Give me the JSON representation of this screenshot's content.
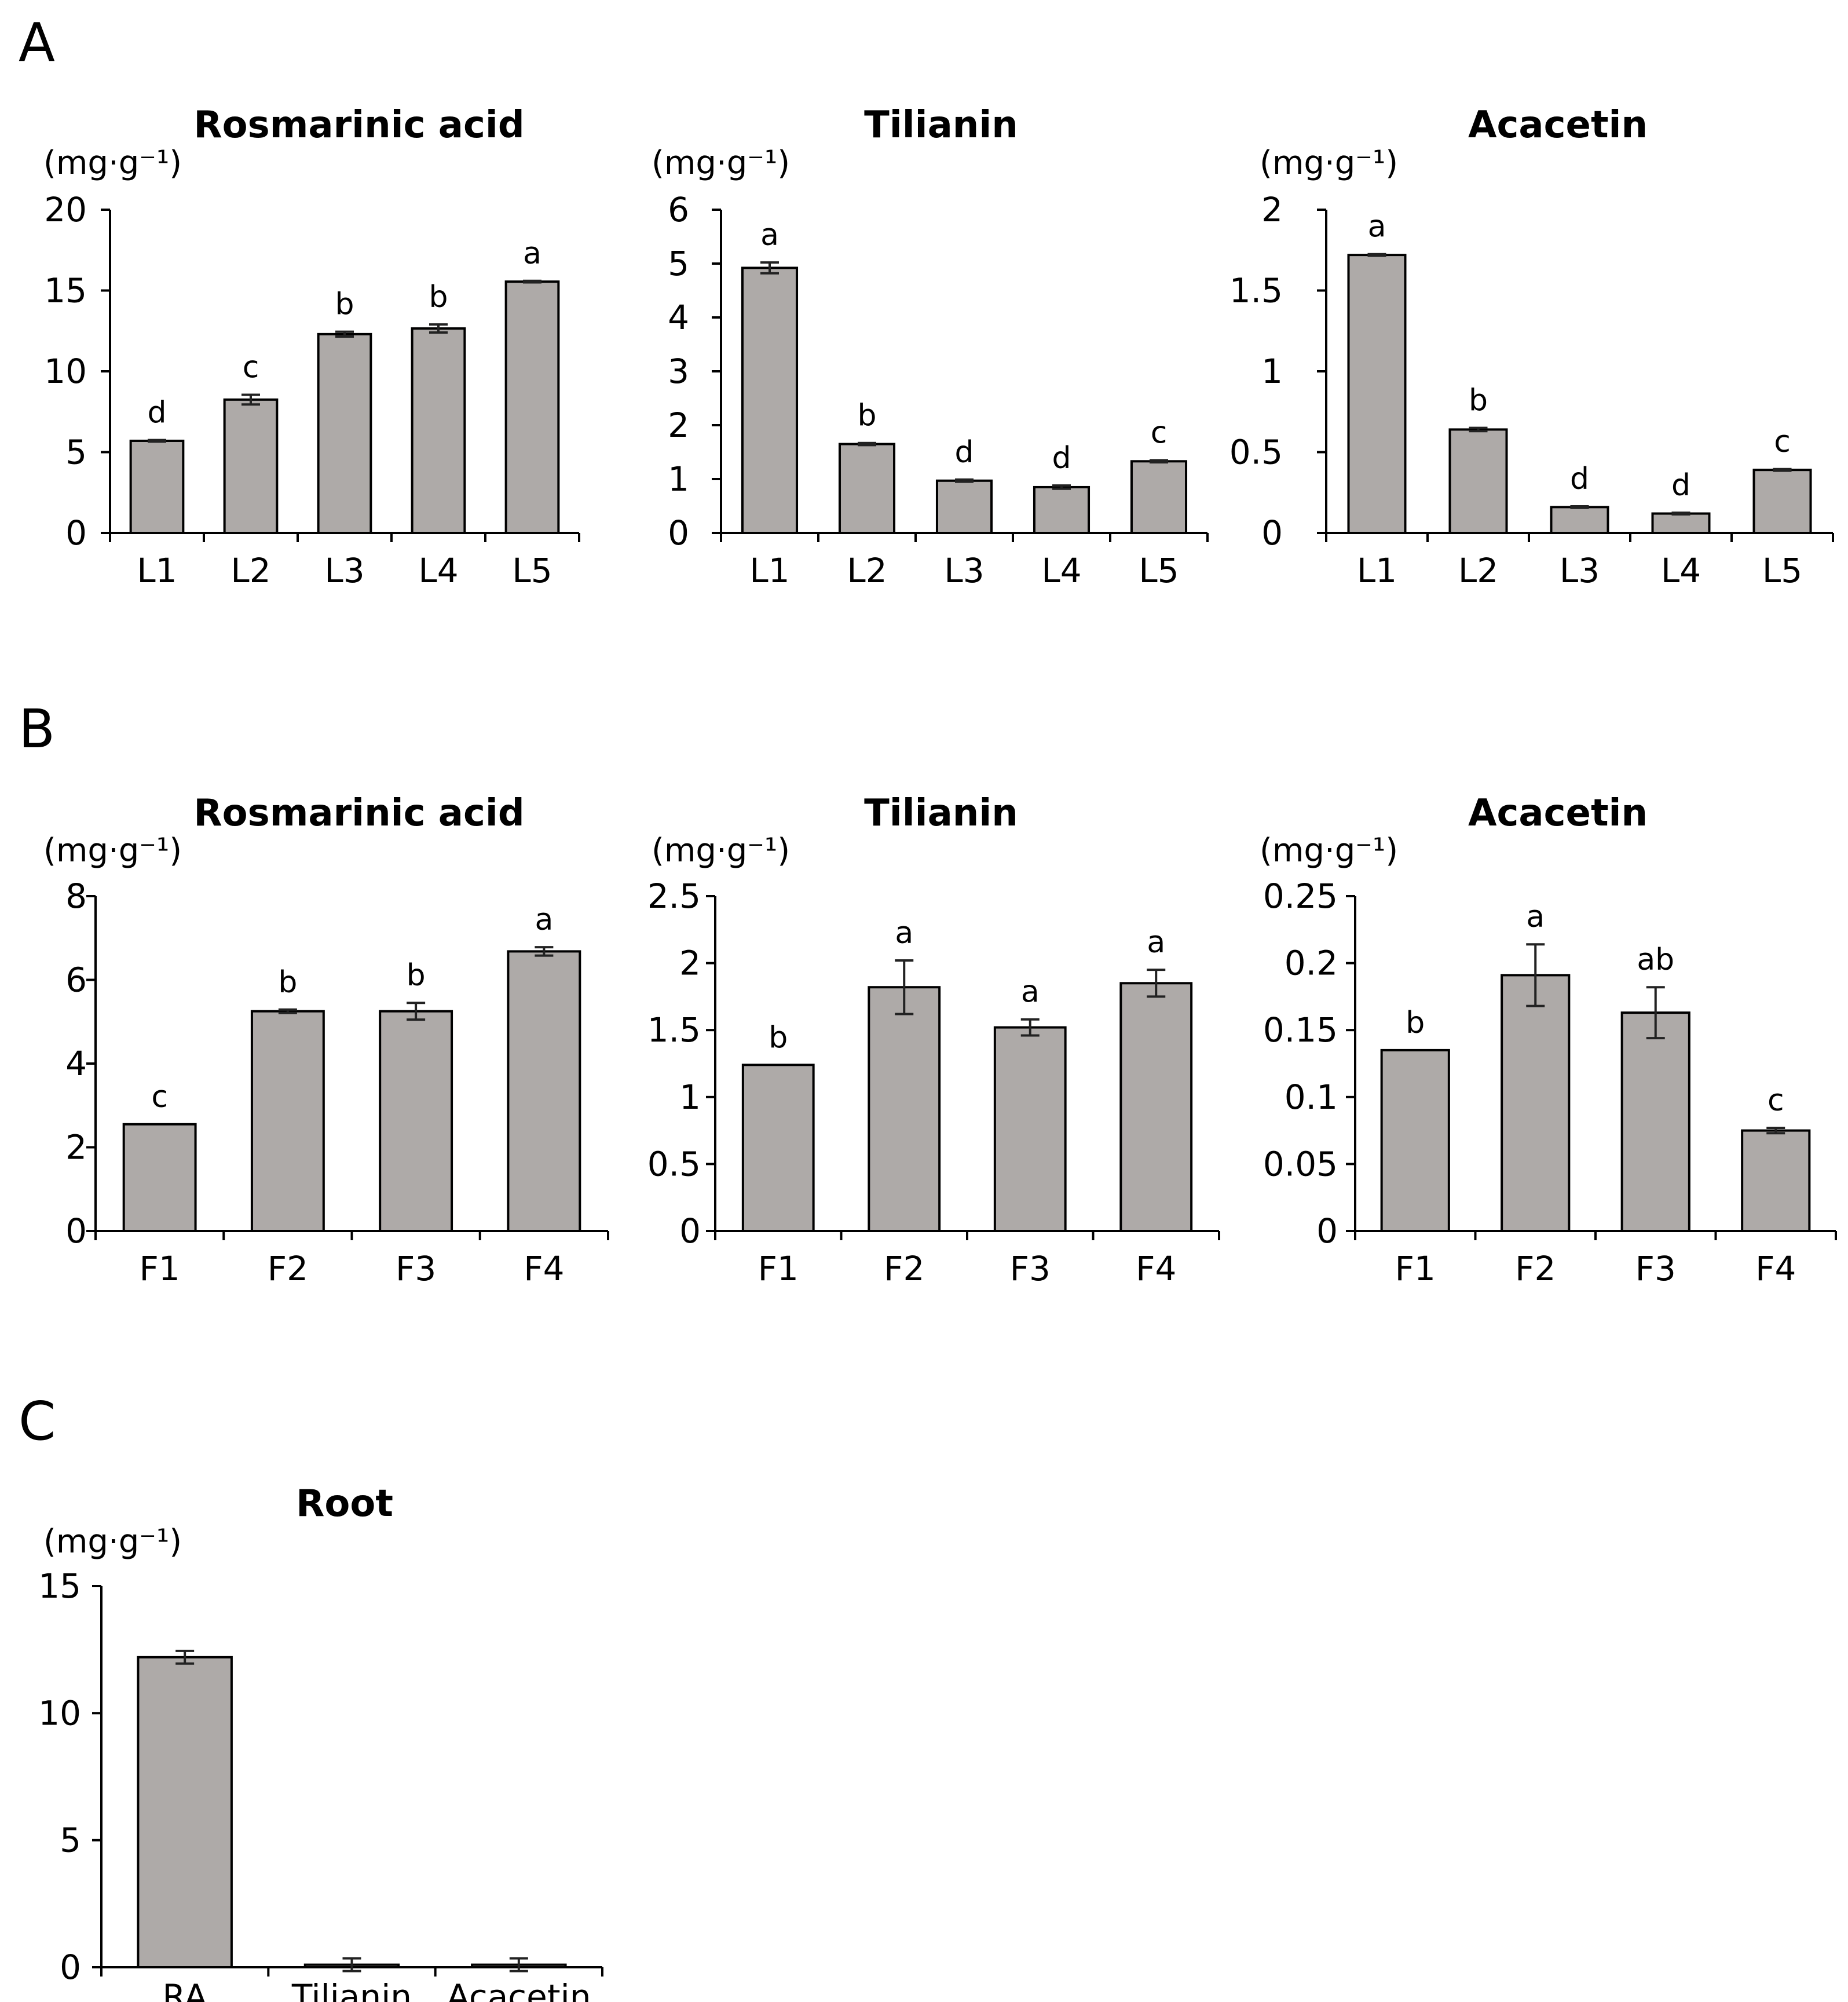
{
  "panels": [
    {
      "letter": "A"
    },
    {
      "letter": "B"
    },
    {
      "letter": "C"
    }
  ],
  "colors": {
    "bar_fill": "#aeaaa8",
    "bar_stroke": "#000000"
  },
  "chart_data": [
    {
      "panel": "A",
      "type": "bar",
      "title": "Rosmarinic acid",
      "ylabel": "(mg·g⁻¹)",
      "categories": [
        "L1",
        "L2",
        "L3",
        "L4",
        "L5"
      ],
      "values": [
        5.7,
        8.25,
        12.3,
        12.65,
        15.55
      ],
      "errors": [
        0.05,
        0.3,
        0.15,
        0.25,
        0.05
      ],
      "significance": [
        "d",
        "c",
        "b",
        "b",
        "a"
      ],
      "ylim": [
        0,
        20
      ],
      "yticks": [
        "0",
        "5",
        "10",
        "15",
        "20"
      ],
      "grid": false
    },
    {
      "panel": "A",
      "type": "bar",
      "title": "Tilianin",
      "ylabel": "(mg·g⁻¹)",
      "categories": [
        "L1",
        "L2",
        "L3",
        "L4",
        "L5"
      ],
      "values": [
        4.92,
        1.65,
        0.97,
        0.85,
        1.33
      ],
      "errors": [
        0.1,
        0.02,
        0.02,
        0.03,
        0.02
      ],
      "significance": [
        "a",
        "b",
        "d",
        "d",
        "c"
      ],
      "ylim": [
        0,
        6
      ],
      "yticks": [
        "0",
        "1",
        "2",
        "3",
        "4",
        "5",
        "6"
      ],
      "grid": false
    },
    {
      "panel": "A",
      "type": "bar",
      "title": "Acacetin",
      "ylabel": "(mg·g⁻¹)",
      "categories": [
        "L1",
        "L2",
        "L3",
        "L4",
        "L5"
      ],
      "values": [
        1.72,
        0.64,
        0.16,
        0.12,
        0.39
      ],
      "errors": [
        0.005,
        0.01,
        0.005,
        0.005,
        0.005
      ],
      "significance": [
        "a",
        "b",
        "d",
        "d",
        "c"
      ],
      "ylim": [
        0,
        2
      ],
      "yticks": [
        "0",
        "0.5",
        "1",
        "1.5",
        "2"
      ],
      "grid": false
    },
    {
      "panel": "B",
      "type": "bar",
      "title": "Rosmarinic acid",
      "ylabel": "(mg·g⁻¹)",
      "categories": [
        "F1",
        "F2",
        "F3",
        "F4"
      ],
      "values": [
        2.55,
        5.25,
        5.25,
        6.68
      ],
      "errors": [
        0,
        0.04,
        0.2,
        0.1
      ],
      "significance": [
        "c",
        "b",
        "b",
        "a"
      ],
      "ylim": [
        0,
        8
      ],
      "yticks": [
        "0",
        "2",
        "4",
        "6",
        "8"
      ],
      "grid": false
    },
    {
      "panel": "B",
      "type": "bar",
      "title": "Tilianin",
      "ylabel": "(mg·g⁻¹)",
      "categories": [
        "F1",
        "F2",
        "F3",
        "F4"
      ],
      "values": [
        1.24,
        1.82,
        1.52,
        1.85
      ],
      "errors": [
        0,
        0.2,
        0.06,
        0.1
      ],
      "significance": [
        "b",
        "a",
        "a",
        "a"
      ],
      "ylim": [
        0,
        2.5
      ],
      "yticks": [
        "0",
        "0.5",
        "1",
        "1.5",
        "2",
        "2.5"
      ],
      "grid": false
    },
    {
      "panel": "B",
      "type": "bar",
      "title": "Acacetin",
      "ylabel": "(mg·g⁻¹)",
      "categories": [
        "F1",
        "F2",
        "F3",
        "F4"
      ],
      "values": [
        0.135,
        0.191,
        0.163,
        0.075
      ],
      "errors": [
        0,
        0.023,
        0.019,
        0.002
      ],
      "significance": [
        "b",
        "a",
        "ab",
        "c"
      ],
      "ylim": [
        0,
        0.25
      ],
      "yticks": [
        "0",
        "0.05",
        "0.1",
        "0.15",
        "0.2",
        "0.25"
      ],
      "grid": false
    },
    {
      "panel": "C",
      "type": "bar",
      "title": "Root",
      "ylabel": "(mg·g⁻¹)",
      "categories": [
        "RA",
        "Tilianin",
        "Acacetin"
      ],
      "values": [
        12.2,
        0.1,
        0.1
      ],
      "errors": [
        0.25,
        0.25,
        0.25
      ],
      "significance": [
        "",
        "",
        ""
      ],
      "ylim": [
        0,
        15
      ],
      "yticks": [
        "0",
        "5",
        "10",
        "15"
      ],
      "grid": false
    }
  ]
}
